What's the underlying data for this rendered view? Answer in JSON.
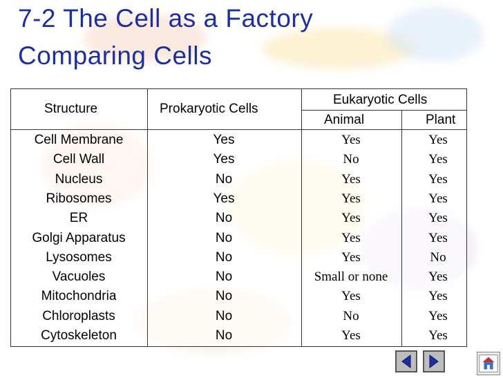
{
  "title": {
    "line1": "7-2 The Cell as a Factory",
    "line2": "Comparing Cells"
  },
  "table": {
    "headers": {
      "structure": "Structure",
      "prokaryotic": "Prokaryotic Cells",
      "eukaryotic": "Eukaryotic Cells",
      "animal": "Animal",
      "plant": "Plant"
    },
    "rows": [
      {
        "structure": "Cell Membrane",
        "prokaryotic": "Yes",
        "animal": "Yes",
        "plant": "Yes"
      },
      {
        "structure": "Cell Wall",
        "prokaryotic": "Yes",
        "animal": "No",
        "plant": "Yes"
      },
      {
        "structure": "Nucleus",
        "prokaryotic": "No",
        "animal": "Yes",
        "plant": "Yes"
      },
      {
        "structure": "Ribosomes",
        "prokaryotic": "Yes",
        "animal": "Yes",
        "plant": "Yes"
      },
      {
        "structure": "ER",
        "prokaryotic": "No",
        "animal": "Yes",
        "plant": "Yes"
      },
      {
        "structure": "Golgi Apparatus",
        "prokaryotic": "No",
        "animal": "Yes",
        "plant": "Yes"
      },
      {
        "structure": "Lysosomes",
        "prokaryotic": "No",
        "animal": "Yes",
        "plant": "No"
      },
      {
        "structure": "Vacuoles",
        "prokaryotic": "No",
        "animal": "Small or none",
        "plant": "Yes"
      },
      {
        "structure": "Mitochondria",
        "prokaryotic": "No",
        "animal": "Yes",
        "plant": "Yes"
      },
      {
        "structure": "Chloroplasts",
        "prokaryotic": "No",
        "animal": "No",
        "plant": "Yes"
      },
      {
        "structure": "Cytoskeleton",
        "prokaryotic": "No",
        "animal": "Yes",
        "plant": "Yes"
      }
    ]
  },
  "nav": {
    "prev_icon": "triangle-left-icon",
    "next_icon": "triangle-right-icon",
    "home_icon": "home-icon"
  },
  "colors": {
    "title": "#1c2fa0",
    "nav_button": "#bdbdbd",
    "nav_arrow": "#1c2fa0"
  }
}
